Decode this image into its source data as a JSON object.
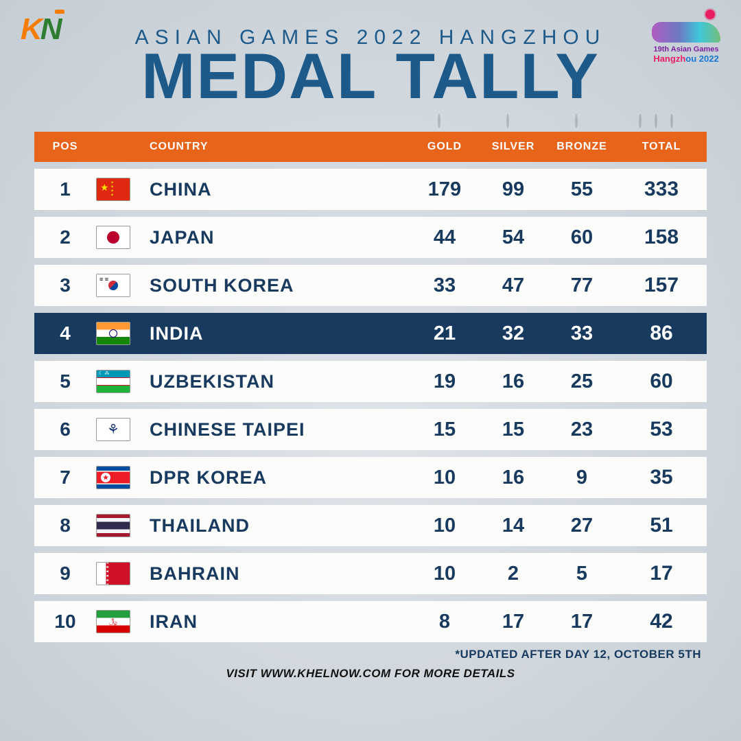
{
  "branding": {
    "source_logo_text": "KN",
    "event_logo_line1": "19th Asian Games",
    "event_logo_line2_a": "Hangzh",
    "event_logo_line2_b": "ou 2022"
  },
  "header": {
    "subtitle": "ASIAN GAMES 2022 HANGZHOU",
    "title": "MEDAL TALLY"
  },
  "columns": {
    "pos": "POS",
    "country": "COUNTRY",
    "gold": "GOLD",
    "silver": "SILVER",
    "bronze": "BRONZE",
    "total": "TOTAL"
  },
  "style": {
    "header_bg": "#e8641b",
    "row_bg": "#fcfcfa",
    "highlight_bg": "#173a5e",
    "text_color": "#173a5e",
    "highlight_text": "#ffffff",
    "title_color": "#1d5a8a",
    "medal_colors": {
      "gold": "#d4af37",
      "silver": "#a8a8a8",
      "bronze": "#a0622d"
    },
    "title_fontsize_pt": 70,
    "subtitle_fontsize_pt": 22,
    "row_fontsize_pt": 21
  },
  "rows": [
    {
      "pos": "1",
      "flag": "CHN",
      "country": "CHINA",
      "gold": "179",
      "silver": "99",
      "bronze": "55",
      "total": "333",
      "highlight": false
    },
    {
      "pos": "2",
      "flag": "JPN",
      "country": "JAPAN",
      "gold": "44",
      "silver": "54",
      "bronze": "60",
      "total": "158",
      "highlight": false
    },
    {
      "pos": "3",
      "flag": "KOR",
      "country": "SOUTH KOREA",
      "gold": "33",
      "silver": "47",
      "bronze": "77",
      "total": "157",
      "highlight": false
    },
    {
      "pos": "4",
      "flag": "IND",
      "country": "INDIA",
      "gold": "21",
      "silver": "32",
      "bronze": "33",
      "total": "86",
      "highlight": true
    },
    {
      "pos": "5",
      "flag": "UZB",
      "country": "UZBEKISTAN",
      "gold": "19",
      "silver": "16",
      "bronze": "25",
      "total": "60",
      "highlight": false
    },
    {
      "pos": "6",
      "flag": "TPE",
      "country": "CHINESE TAIPEI",
      "gold": "15",
      "silver": "15",
      "bronze": "23",
      "total": "53",
      "highlight": false
    },
    {
      "pos": "7",
      "flag": "PRK",
      "country": "DPR KOREA",
      "gold": "10",
      "silver": "16",
      "bronze": "9",
      "total": "35",
      "highlight": false
    },
    {
      "pos": "8",
      "flag": "THA",
      "country": "THAILAND",
      "gold": "10",
      "silver": "14",
      "bronze": "27",
      "total": "51",
      "highlight": false
    },
    {
      "pos": "9",
      "flag": "BHR",
      "country": "BAHRAIN",
      "gold": "10",
      "silver": "2",
      "bronze": "5",
      "total": "17",
      "highlight": false
    },
    {
      "pos": "10",
      "flag": "IRN",
      "country": "IRAN",
      "gold": "8",
      "silver": "17",
      "bronze": "17",
      "total": "42",
      "highlight": false
    }
  ],
  "footer": {
    "update_note": "*UPDATED AFTER DAY 12, OCTOBER 5TH",
    "cta": "VISIT WWW.KHELNOW.COM FOR MORE DETAILS"
  }
}
